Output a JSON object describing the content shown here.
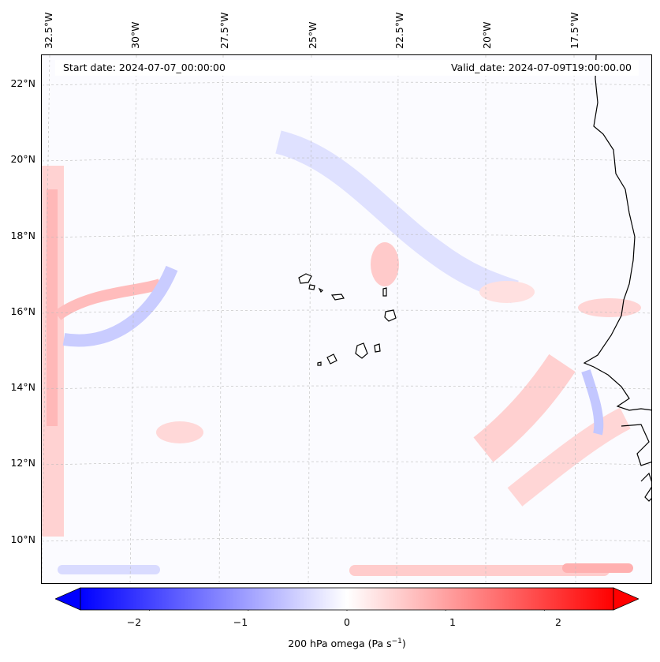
{
  "header": {
    "start_date": "Start date: 2024-07-07_00:00:00",
    "valid_date": "Valid_date: 2024-07-09T19:00:00.00"
  },
  "axes": {
    "lon_labels": [
      "32.5°W",
      "30°W",
      "27.5°W",
      "25°W",
      "22.5°W",
      "20°W",
      "17.5°W"
    ],
    "lat_labels": [
      "22°N",
      "20°N",
      "18°N",
      "16°N",
      "14°N",
      "12°N",
      "10°N"
    ]
  },
  "colorbar": {
    "ticks": [
      "−2",
      "−1",
      "0",
      "1",
      "2"
    ],
    "label_prefix": "200 hPa omega (Pa s",
    "label_exp": "−1",
    "label_suffix": ")",
    "min": -2.7,
    "max": 2.7,
    "neg_color": "#0000ff",
    "pos_color": "#ff0000",
    "mid_color": "#ffffff"
  }
}
